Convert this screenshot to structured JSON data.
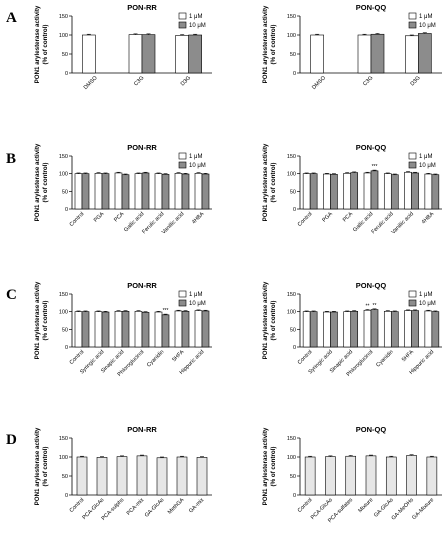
{
  "colors": {
    "white_bar": "#ffffff",
    "gray_bar": "#8c8c8c",
    "light_bar": "#e6e6e6",
    "axis": "#000000"
  },
  "chart_data": [
    {
      "panel_label": "A",
      "title": "PON-RR",
      "type": "bar",
      "ylabel_line1": "PON1 arylesterase activity",
      "ylabel_line2": "(% of control)",
      "ylim": [
        0,
        150
      ],
      "yticks": [
        "0",
        "50",
        "100",
        "150"
      ],
      "categories": [
        "DMSO",
        "C3G",
        "D3G"
      ],
      "legend": [
        {
          "label": "1 μM",
          "color": "#ffffff"
        },
        {
          "label": "10 μM",
          "color": "#8c8c8c"
        }
      ],
      "series": [
        {
          "name": "1 μM",
          "color": "#ffffff",
          "values": [
            100,
            101,
            99
          ]
        },
        {
          "name": "10 μM",
          "color": "#8c8c8c",
          "values": [
            null,
            101,
            100
          ]
        }
      ]
    },
    {
      "panel_label": "",
      "title": "PON-QQ",
      "type": "bar",
      "ylabel_line1": "PON1 arylesterase activity",
      "ylabel_line2": "(% of control)",
      "ylim": [
        0,
        150
      ],
      "yticks": [
        "0",
        "50",
        "100",
        "150"
      ],
      "categories": [
        "DMSO",
        "C3G",
        "D3G"
      ],
      "legend": [
        {
          "label": "1 μM",
          "color": "#ffffff"
        },
        {
          "label": "10 μM",
          "color": "#8c8c8c"
        }
      ],
      "series": [
        {
          "name": "1 μM",
          "color": "#ffffff",
          "values": [
            100,
            100,
            98
          ]
        },
        {
          "name": "10 μM",
          "color": "#8c8c8c",
          "values": [
            null,
            102,
            104
          ]
        }
      ]
    },
    {
      "panel_label": "B",
      "title": "PON-RR",
      "type": "bar",
      "ylabel_line1": "PON1 arylesterase activity",
      "ylabel_line2": "(% of control)",
      "ylim": [
        0,
        150
      ],
      "yticks": [
        "0",
        "50",
        "100",
        "150"
      ],
      "categories": [
        "Control",
        "PGA",
        "PCA",
        "Gallic acid",
        "Ferulic acid",
        "Vanillic acid",
        "4HBA"
      ],
      "legend": [
        {
          "label": "1 μM",
          "color": "#ffffff"
        },
        {
          "label": "10 μM",
          "color": "#8c8c8c"
        }
      ],
      "series": [
        {
          "name": "1 μM",
          "color": "#ffffff",
          "values": [
            100,
            101,
            102,
            100,
            100,
            101,
            101
          ]
        },
        {
          "name": "10 μM",
          "color": "#8c8c8c",
          "values": [
            100,
            100,
            97,
            102,
            98,
            99,
            99
          ]
        }
      ]
    },
    {
      "panel_label": "",
      "title": "PON-QQ",
      "type": "bar",
      "ylabel_line1": "PON1 arylesterase activity",
      "ylabel_line2": "(% of control)",
      "ylim": [
        0,
        150
      ],
      "yticks": [
        "0",
        "50",
        "100",
        "150"
      ],
      "categories": [
        "Control",
        "PGA",
        "PCA",
        "Gallic acid",
        "Ferulic acid",
        "Vanillic acid",
        "4HBA"
      ],
      "legend": [
        {
          "label": "1 μM",
          "color": "#ffffff"
        },
        {
          "label": "10 μM",
          "color": "#8c8c8c"
        }
      ],
      "series": [
        {
          "name": "1 μM",
          "color": "#ffffff",
          "values": [
            100,
            99,
            101,
            102,
            100,
            104,
            99
          ]
        },
        {
          "name": "10 μM",
          "color": "#8c8c8c",
          "values": [
            100,
            98,
            103,
            108,
            97,
            102,
            97
          ]
        }
      ],
      "annotations": [
        {
          "category": "Gallic acid",
          "series": 1,
          "text": "***"
        }
      ]
    },
    {
      "panel_label": "C",
      "title": "PON-RR",
      "type": "bar",
      "ylabel_line1": "PON1 arylesterase activity",
      "ylabel_line2": "(% of control)",
      "ylim": [
        0,
        150
      ],
      "yticks": [
        "0",
        "50",
        "100",
        "150"
      ],
      "categories": [
        "Control",
        "Syringic acid",
        "Sinapic acid",
        "Phloroglucinol",
        "Cyanidin",
        "5HFA",
        "Hippuric acid"
      ],
      "legend": [
        {
          "label": "1 μM",
          "color": "#ffffff"
        },
        {
          "label": "10 μM",
          "color": "#8c8c8c"
        }
      ],
      "series": [
        {
          "name": "1 μM",
          "color": "#ffffff",
          "values": [
            100,
            100,
            101,
            101,
            99,
            102,
            103
          ]
        },
        {
          "name": "10 μM",
          "color": "#8c8c8c",
          "values": [
            100,
            99,
            101,
            98,
            91,
            101,
            102
          ]
        }
      ],
      "annotations": [
        {
          "category": "Cyanidin",
          "series": 1,
          "text": "***"
        }
      ]
    },
    {
      "panel_label": "",
      "title": "PON-QQ",
      "type": "bar",
      "ylabel_line1": "PON1 arylesterase activity",
      "ylabel_line2": "(% of control)",
      "ylim": [
        0,
        150
      ],
      "yticks": [
        "0",
        "50",
        "100",
        "150"
      ],
      "categories": [
        "Control",
        "Syringic acid",
        "Sinapic acid",
        "Phloroglucinol",
        "Cyanidin",
        "5HFA",
        "Hippuric acid"
      ],
      "legend": [
        {
          "label": "1 μM",
          "color": "#ffffff"
        },
        {
          "label": "10 μM",
          "color": "#8c8c8c"
        }
      ],
      "series": [
        {
          "name": "1 μM",
          "color": "#ffffff",
          "values": [
            100,
            99,
            100,
            104,
            101,
            103,
            102
          ]
        },
        {
          "name": "10 μM",
          "color": "#8c8c8c",
          "values": [
            100,
            99,
            101,
            106,
            100,
            103,
            100
          ]
        }
      ],
      "annotations": [
        {
          "category": "Phloroglucinol",
          "series": 0,
          "text": "**"
        },
        {
          "category": "Phloroglucinol",
          "series": 1,
          "text": "**"
        }
      ]
    },
    {
      "panel_label": "D",
      "title": "PON-RR",
      "type": "bar",
      "ylabel_line1": "PON1 arylesterase activity",
      "ylabel_line2": "(% of control)",
      "ylim": [
        0,
        150
      ],
      "yticks": [
        "0",
        "50",
        "100",
        "150"
      ],
      "categories": [
        "Control",
        "PCA-GlcAs",
        "PCA-sulphs",
        "PCA-mix",
        "GA-GlcAs",
        "MethGA",
        "GA-mix"
      ],
      "series": [
        {
          "color": "#e6e6e6",
          "values": [
            100,
            99,
            101,
            103,
            98,
            100,
            99
          ]
        }
      ]
    },
    {
      "panel_label": "",
      "title": "PON-QQ",
      "type": "bar",
      "ylabel_line1": "PON1 arylesterase activity",
      "ylabel_line2": "(% of control)",
      "ylim": [
        0,
        150
      ],
      "yticks": [
        "0",
        "50",
        "100",
        "150"
      ],
      "categories": [
        "Control",
        "PCA-GlcAs",
        "PCA-sulfates",
        "Mixture",
        "GA-GlcAs",
        "GA-MeOHs",
        "GA-Mixture"
      ],
      "series": [
        {
          "color": "#e6e6e6",
          "values": [
            100,
            101,
            102,
            103,
            100,
            104,
            100
          ]
        }
      ]
    }
  ]
}
